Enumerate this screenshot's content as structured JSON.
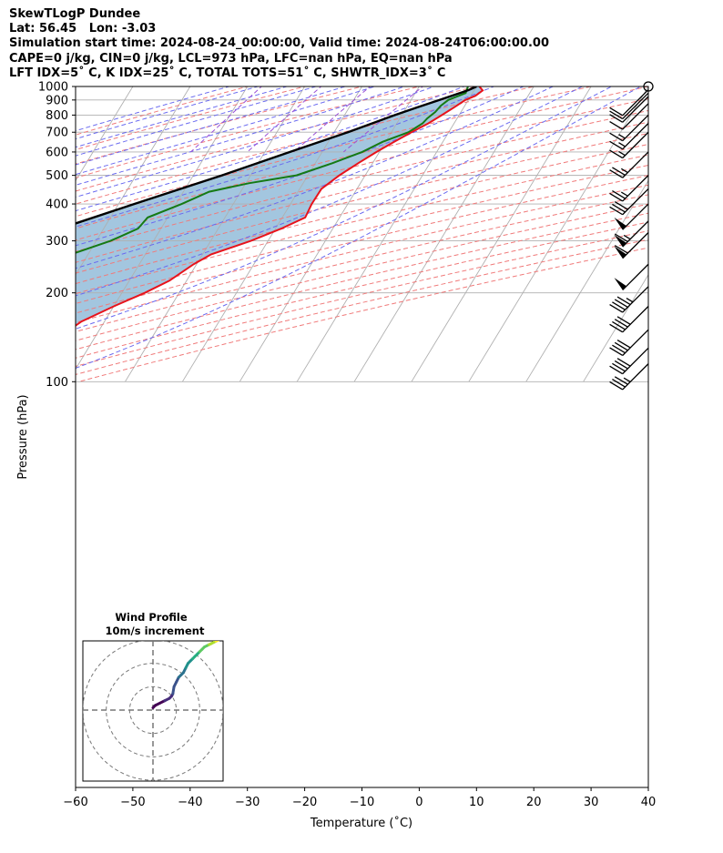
{
  "header": {
    "line1": "SkewTLogP Dundee",
    "line2": "Lat: 56.45   Lon: -3.03",
    "line3": "Simulation start time: 2024-08-24_00:00:00, Valid time: 2024-08-24T06:00:00.00",
    "line4": "CAPE=0 j/kg, CIN=0 j/kg, LCL=973 hPa, LFC=nan hPa, EQ=nan hPa",
    "line5": "LFT IDX=5˚ C, K IDX=25˚ C, TOTAL TOTS=51˚ C, SHWTR_IDX=3˚ C"
  },
  "chart_data": [
    {
      "type": "line",
      "subtype": "skew-t log-p",
      "xlabel": "Temperature (˚C)",
      "ylabel": "Pressure (hPa)",
      "xlim": [
        -60,
        40
      ],
      "ylim": [
        1050,
        100
      ],
      "y_scale": "log",
      "grid": true,
      "x_ticks": [
        -60,
        -50,
        -40,
        -30,
        -20,
        -10,
        0,
        10,
        20,
        30,
        40
      ],
      "x_tick_labels": [
        "−60",
        "−50",
        "−40",
        "−30",
        "−20",
        "−10",
        "0",
        "10",
        "20",
        "30",
        "40"
      ],
      "y_ticks": [
        1000,
        900,
        800,
        700,
        600,
        500,
        400,
        300,
        200,
        100
      ],
      "y_tick_labels": [
        "1000",
        "900",
        "800",
        "700",
        "600",
        "500",
        "400",
        "300",
        "200",
        "100"
      ],
      "colors": {
        "temperature": "#e8131b",
        "dewpoint": "#157a14",
        "parcel": "#000000",
        "shade": "#a3c6df",
        "dry_adiabats": "#f07a7a",
        "moist_adiabats": "#6a6af0",
        "mixing_ratio": "#9a4fd6",
        "isotherms": "#b0b0b0"
      },
      "series": [
        {
          "role": "temperature",
          "points": [
            [
              1000,
              10.5
            ],
            [
              970,
              11.5
            ],
            [
              930,
              10.8
            ],
            [
              900,
              9.5
            ],
            [
              850,
              8.3
            ],
            [
              800,
              7.0
            ],
            [
              750,
              5.5
            ],
            [
              700,
              3.5
            ],
            [
              650,
              1.5
            ],
            [
              600,
              -0.5
            ],
            [
              550,
              -2.5
            ],
            [
              500,
              -4.5
            ],
            [
              450,
              -6.2
            ],
            [
              400,
              -6.3
            ],
            [
              360,
              -6.0
            ],
            [
              330,
              -9.0
            ],
            [
              300,
              -13.0
            ],
            [
              270,
              -18.5
            ],
            [
              250,
              -20.5
            ],
            [
              220,
              -23.0
            ],
            [
              200,
              -26.0
            ],
            [
              180,
              -30.0
            ],
            [
              160,
              -34.0
            ],
            [
              140,
              -36.5
            ],
            [
              120,
              -38.5
            ],
            [
              100,
              -40.0
            ]
          ]
        },
        {
          "role": "dewpoint",
          "points": [
            [
              1000,
              8.5
            ],
            [
              950,
              8.8
            ],
            [
              900,
              6.5
            ],
            [
              860,
              5.8
            ],
            [
              820,
              5.5
            ],
            [
              780,
              4.8
            ],
            [
              750,
              4.5
            ],
            [
              700,
              3.0
            ],
            [
              650,
              -0.5
            ],
            [
              600,
              -3.0
            ],
            [
              550,
              -7.0
            ],
            [
              500,
              -12.0
            ],
            [
              470,
              -19.5
            ],
            [
              440,
              -25.5
            ],
            [
              400,
              -29.0
            ],
            [
              360,
              -33.5
            ],
            [
              330,
              -34.0
            ],
            [
              300,
              -37.5
            ],
            [
              270,
              -43.0
            ],
            [
              245,
              -50.0
            ],
            [
              220,
              -58.0
            ],
            [
              200,
              -63.0
            ],
            [
              180,
              -68.0
            ],
            [
              160,
              -69.0
            ],
            [
              140,
              -67.5
            ],
            [
              120,
              -66.5
            ],
            [
              100,
              -67.5
            ]
          ]
        },
        {
          "role": "parcel",
          "points": [
            [
              1000,
              10.0
            ],
            [
              973,
              9.0
            ],
            [
              900,
              5.0
            ],
            [
              850,
              1.9
            ],
            [
              800,
              -1.2
            ],
            [
              700,
              -7.6
            ],
            [
              600,
              -15.6
            ],
            [
              500,
              -25.0
            ],
            [
              400,
              -37.3
            ],
            [
              300,
              -52.8
            ],
            [
              250,
              -62.5
            ],
            [
              200,
              -73.5
            ],
            [
              150,
              -86.5
            ],
            [
              100,
              -102.0
            ]
          ]
        }
      ],
      "wind_barbs": [
        {
          "p": 1000,
          "speed_kt": 0
        },
        {
          "p": 975,
          "speed_kt": 10
        },
        {
          "p": 950,
          "speed_kt": 10
        },
        {
          "p": 925,
          "speed_kt": 10
        },
        {
          "p": 875,
          "speed_kt": 10
        },
        {
          "p": 800,
          "speed_kt": 15
        },
        {
          "p": 750,
          "speed_kt": 15
        },
        {
          "p": 700,
          "speed_kt": 15
        },
        {
          "p": 600,
          "speed_kt": 25
        },
        {
          "p": 500,
          "speed_kt": 25
        },
        {
          "p": 450,
          "speed_kt": 30
        },
        {
          "p": 400,
          "speed_kt": 50
        },
        {
          "p": 350,
          "speed_kt": 65
        },
        {
          "p": 320,
          "speed_kt": 60
        },
        {
          "p": 250,
          "speed_kt": 50
        },
        {
          "p": 210,
          "speed_kt": 45
        },
        {
          "p": 180,
          "speed_kt": 40
        },
        {
          "p": 150,
          "speed_kt": 40
        },
        {
          "p": 130,
          "speed_kt": 40
        },
        {
          "p": 115,
          "speed_kt": 35
        }
      ]
    },
    {
      "type": "line",
      "subtype": "hodograph",
      "title": "Wind Profile",
      "subtitle": "10m/s increment",
      "lim": [
        -30,
        30
      ],
      "ring_step": 10,
      "u": [
        0,
        1,
        3,
        5,
        7,
        8,
        8.5,
        9,
        10,
        11,
        12,
        13,
        14,
        15,
        16,
        17,
        18,
        19,
        20,
        21,
        22,
        24,
        25,
        26,
        27,
        28,
        29,
        30
      ],
      "v": [
        1,
        2,
        3,
        4,
        5,
        6,
        7,
        10,
        12,
        14,
        15,
        16,
        18,
        20,
        21,
        22,
        23,
        24,
        25,
        26,
        27,
        28,
        28.5,
        29,
        29.5,
        30,
        30.5,
        31
      ],
      "colormap": "viridis"
    }
  ]
}
